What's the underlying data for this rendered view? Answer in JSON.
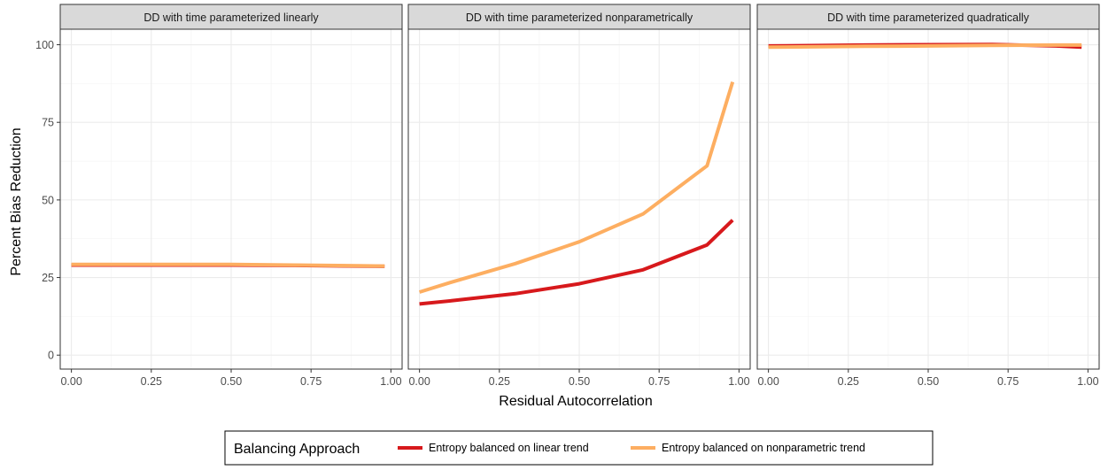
{
  "chart_data": {
    "type": "line",
    "xlabel": "Residual Autocorrelation",
    "ylabel": "Percent Bias Reduction",
    "xlim": [
      -0.035,
      1.035
    ],
    "ylim": [
      -4.5,
      105
    ],
    "xticks": [
      0,
      0.25,
      0.5,
      0.75,
      1.0
    ],
    "xtick_labels": [
      "0.00",
      "0.25",
      "0.50",
      "0.75",
      "1.00"
    ],
    "yticks": [
      0,
      25,
      50,
      75,
      100
    ],
    "ytick_labels": [
      "0",
      "25",
      "50",
      "75",
      "100"
    ],
    "grid": true,
    "legend": {
      "title": "Balancing Approach",
      "position": "bottom",
      "entries": [
        {
          "label": "Entropy balanced on linear trend",
          "color": "#d7191c"
        },
        {
          "label": "Entropy balanced on nonparametric trend",
          "color": "#fdae61"
        }
      ]
    },
    "panels": [
      {
        "title": "DD with time parameterized linearly",
        "series": [
          {
            "name": "Entropy balanced on linear trend",
            "color": "#d7191c",
            "x": [
              0,
              0.1,
              0.3,
              0.5,
              0.7,
              0.9,
              0.98
            ],
            "y": [
              29.0,
              29.0,
              29.0,
              29.0,
              28.9,
              28.7,
              28.6
            ]
          },
          {
            "name": "Entropy balanced on nonparametric trend",
            "color": "#fdae61",
            "x": [
              0,
              0.1,
              0.3,
              0.5,
              0.7,
              0.9,
              0.98
            ],
            "y": [
              29.2,
              29.2,
              29.2,
              29.2,
              29.0,
              28.8,
              28.7
            ]
          }
        ]
      },
      {
        "title": "DD with time parameterized nonparametrically",
        "series": [
          {
            "name": "Entropy balanced on linear trend",
            "color": "#d7191c",
            "x": [
              0,
              0.1,
              0.3,
              0.5,
              0.7,
              0.9,
              0.98
            ],
            "y": [
              16.5,
              17.5,
              19.8,
              23.0,
              27.5,
              35.5,
              43.5
            ]
          },
          {
            "name": "Entropy balanced on nonparametric trend",
            "color": "#fdae61",
            "x": [
              0,
              0.1,
              0.3,
              0.5,
              0.7,
              0.9,
              0.98
            ],
            "y": [
              20.3,
              23.5,
              29.5,
              36.5,
              45.5,
              61.0,
              88.0
            ]
          }
        ]
      },
      {
        "title": "DD with time parameterized quadratically",
        "series": [
          {
            "name": "Entropy balanced on linear trend",
            "color": "#d7191c",
            "x": [
              0,
              0.1,
              0.3,
              0.5,
              0.7,
              0.9,
              0.98
            ],
            "y": [
              99.6,
              99.7,
              99.9,
              100.0,
              100.1,
              99.6,
              99.2
            ]
          },
          {
            "name": "Entropy balanced on nonparametric trend",
            "color": "#fdae61",
            "x": [
              0,
              0.1,
              0.3,
              0.5,
              0.7,
              0.9,
              0.98
            ],
            "y": [
              99.2,
              99.3,
              99.5,
              99.6,
              99.8,
              99.9,
              99.9
            ]
          }
        ]
      }
    ]
  }
}
